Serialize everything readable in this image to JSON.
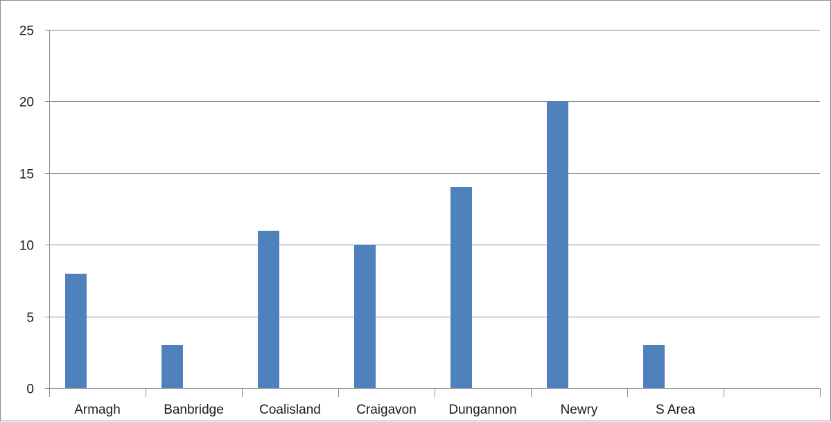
{
  "chart_data": {
    "type": "bar",
    "categories": [
      "Armagh",
      "Banbridge",
      "Coalisland",
      "Craigavon",
      "Dungannon",
      "Newry",
      "S Area",
      ""
    ],
    "values": [
      8,
      3,
      11,
      10,
      14,
      20,
      3,
      null
    ],
    "title": "",
    "xlabel": "",
    "ylabel": "",
    "ylim": [
      0,
      25
    ],
    "yticks": [
      0,
      5,
      10,
      15,
      20,
      25
    ],
    "grid": true,
    "legend": "none",
    "bar_color": "#4f81bd",
    "grid_color": "#8c8c8c"
  }
}
